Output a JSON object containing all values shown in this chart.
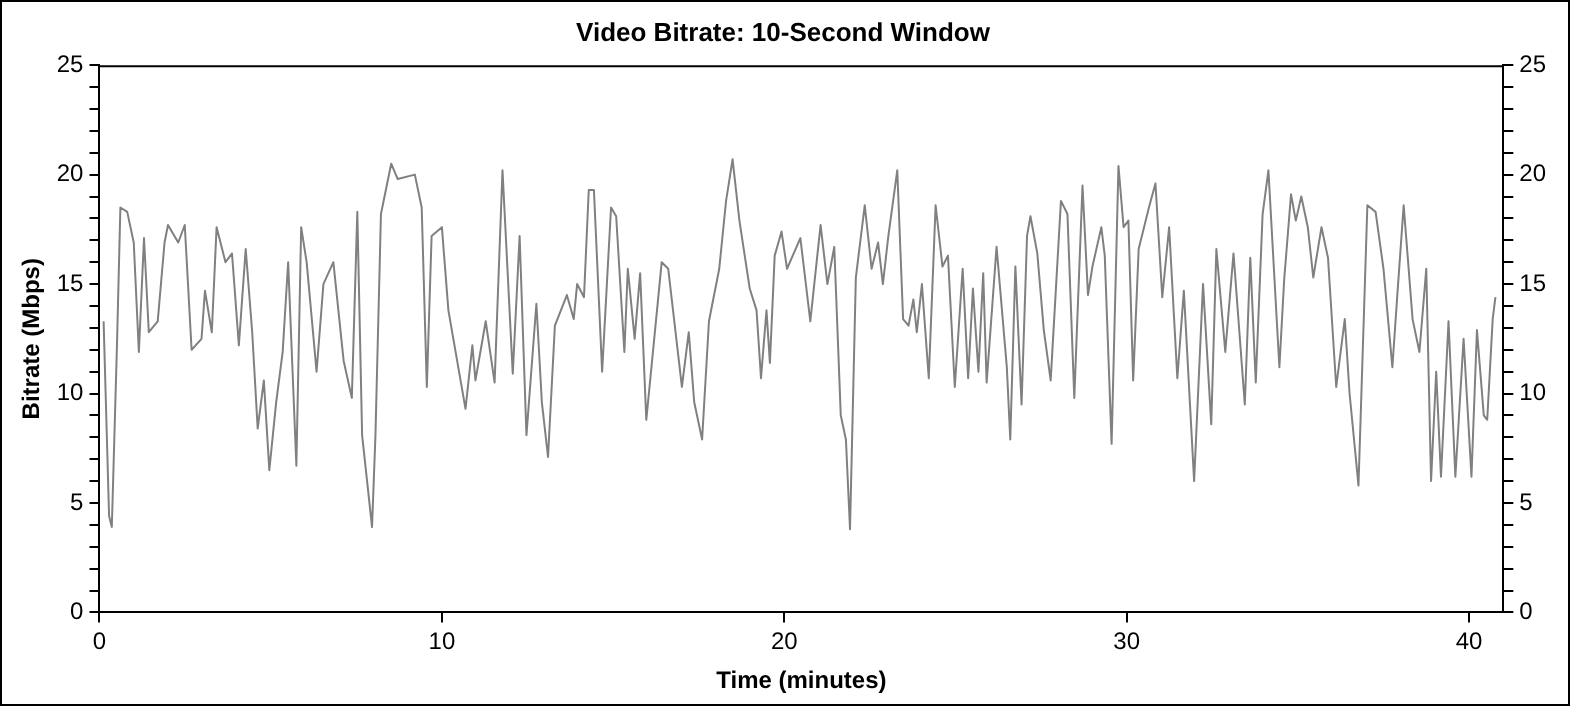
{
  "chart_data": {
    "type": "line",
    "title": "Video Bitrate: 10-Second Window",
    "xlabel": "Time (minutes)",
    "ylabel": "Bitrate (Mbps)",
    "series": [
      {
        "color": "#808080",
        "x": [
          0.12,
          0.28,
          0.36,
          0.51,
          0.61,
          0.81,
          1.0,
          1.15,
          1.3,
          1.44,
          1.7,
          1.9,
          2.0,
          2.3,
          2.49,
          2.69,
          2.98,
          3.08,
          3.28,
          3.42,
          3.68,
          3.87,
          4.07,
          4.27,
          4.46,
          4.62,
          4.8,
          4.96,
          5.16,
          5.35,
          5.51,
          5.75,
          5.89,
          6.05,
          6.34,
          6.54,
          6.83,
          7.13,
          7.37,
          7.53,
          7.67,
          7.96,
          8.06,
          8.22,
          8.52,
          8.71,
          9.21,
          9.41,
          9.56,
          9.7,
          10.0,
          10.19,
          10.69,
          10.89,
          10.98,
          11.28,
          11.54,
          11.77,
          12.07,
          12.27,
          12.47,
          12.76,
          12.92,
          13.1,
          13.3,
          13.65,
          13.85,
          13.95,
          14.15,
          14.29,
          14.44,
          14.68,
          14.94,
          15.09,
          15.33,
          15.43,
          15.63,
          15.79,
          15.97,
          16.42,
          16.61,
          17.01,
          17.21,
          17.37,
          17.6,
          17.8,
          18.1,
          18.3,
          18.49,
          18.69,
          18.99,
          19.19,
          19.32,
          19.48,
          19.58,
          19.72,
          19.92,
          20.08,
          20.47,
          20.76,
          21.06,
          21.26,
          21.46,
          21.65,
          21.8,
          21.92,
          22.09,
          22.35,
          22.55,
          22.74,
          22.88,
          23.04,
          23.3,
          23.47,
          23.63,
          23.77,
          23.87,
          24.02,
          24.22,
          24.42,
          24.62,
          24.78,
          24.98,
          25.21,
          25.37,
          25.51,
          25.67,
          25.81,
          25.91,
          26.2,
          26.5,
          26.6,
          26.75,
          26.93,
          27.09,
          27.19,
          27.39,
          27.58,
          27.78,
          28.08,
          28.27,
          28.47,
          28.71,
          28.87,
          29.0,
          29.26,
          29.36,
          29.56,
          29.76,
          29.91,
          30.05,
          30.19,
          30.35,
          30.65,
          30.84,
          31.04,
          31.24,
          31.48,
          31.67,
          31.97,
          32.23,
          32.47,
          32.62,
          32.88,
          33.12,
          33.45,
          33.61,
          33.77,
          33.97,
          34.14,
          34.46,
          34.6,
          34.8,
          34.94,
          35.1,
          35.29,
          35.45,
          35.69,
          35.88,
          36.12,
          36.37,
          36.51,
          36.77,
          37.03,
          37.27,
          37.5,
          37.76,
          37.9,
          38.09,
          38.35,
          38.55,
          38.75,
          38.89,
          39.04,
          39.18,
          39.4,
          39.6,
          39.84,
          40.07,
          40.23,
          40.43,
          40.53,
          40.69,
          40.77
        ],
        "values": [
          13.3,
          4.4,
          3.9,
          12.2,
          18.5,
          18.3,
          16.9,
          11.9,
          17.1,
          12.8,
          13.3,
          16.9,
          17.7,
          16.9,
          17.7,
          12.0,
          12.5,
          14.7,
          12.8,
          17.6,
          16.0,
          16.4,
          12.2,
          16.6,
          12.8,
          8.4,
          10.6,
          6.5,
          9.6,
          11.9,
          16.0,
          6.7,
          17.6,
          16.0,
          11.0,
          15.0,
          16.0,
          11.5,
          9.8,
          18.3,
          8.1,
          3.9,
          8.1,
          18.2,
          20.5,
          19.8,
          20.0,
          18.5,
          10.3,
          17.2,
          17.6,
          13.8,
          9.3,
          12.2,
          10.6,
          13.3,
          10.5,
          20.2,
          10.9,
          17.2,
          8.1,
          14.1,
          9.6,
          7.1,
          13.1,
          14.5,
          13.4,
          15.0,
          14.4,
          19.3,
          19.3,
          11.0,
          18.5,
          18.1,
          11.9,
          15.7,
          12.5,
          15.5,
          8.8,
          16.0,
          15.7,
          10.3,
          12.8,
          9.6,
          7.9,
          13.3,
          15.7,
          18.8,
          20.7,
          17.9,
          14.8,
          13.8,
          10.7,
          13.8,
          11.4,
          16.3,
          17.4,
          15.7,
          17.1,
          13.3,
          17.7,
          15.0,
          16.7,
          9.0,
          7.9,
          3.8,
          15.3,
          18.6,
          15.7,
          16.9,
          15.0,
          17.2,
          20.2,
          13.4,
          13.1,
          14.3,
          12.8,
          15.0,
          10.7,
          18.6,
          15.8,
          16.3,
          10.3,
          15.7,
          10.7,
          14.8,
          11.0,
          15.5,
          10.5,
          16.7,
          11.2,
          7.9,
          15.8,
          9.5,
          17.2,
          18.1,
          16.4,
          12.9,
          10.6,
          18.8,
          18.2,
          9.8,
          19.5,
          14.5,
          15.8,
          17.6,
          16.3,
          7.7,
          20.4,
          17.6,
          17.9,
          10.6,
          16.6,
          18.5,
          19.6,
          14.4,
          17.6,
          10.7,
          14.7,
          6.0,
          15.0,
          8.6,
          16.6,
          11.9,
          16.4,
          9.5,
          16.2,
          10.5,
          18.2,
          20.2,
          11.2,
          15.2,
          19.1,
          17.9,
          19.0,
          17.6,
          15.3,
          17.6,
          16.2,
          10.3,
          13.4,
          10.0,
          5.8,
          18.6,
          18.3,
          15.7,
          11.2,
          14.4,
          18.6,
          13.4,
          11.9,
          15.7,
          6.0,
          11.0,
          6.2,
          13.3,
          6.2,
          12.5,
          6.2,
          12.9,
          9.0,
          8.8,
          13.4,
          14.4
        ]
      }
    ],
    "xlim": [
      0,
      41
    ],
    "xticks": [
      0,
      10,
      20,
      30,
      40
    ],
    "ylim": [
      0,
      25
    ],
    "yticks": [
      0,
      {
        "value": 1,
        "label": null
      },
      {
        "value": 2,
        "label": null
      },
      {
        "value": 3,
        "label": null
      },
      {
        "value": 4,
        "label": null
      },
      5,
      {
        "value": 6,
        "label": null
      },
      {
        "value": 7,
        "label": null
      },
      {
        "value": 8,
        "label": null
      },
      {
        "value": 9,
        "label": null
      },
      10,
      {
        "value": 11,
        "label": null
      },
      {
        "value": 12,
        "label": null
      },
      {
        "value": 13,
        "label": null
      },
      {
        "value": 14,
        "label": null
      },
      15,
      {
        "value": 16,
        "label": null
      },
      {
        "value": 17,
        "label": null
      },
      {
        "value": 18,
        "label": null
      },
      {
        "value": 19,
        "label": null
      },
      20,
      {
        "value": 21,
        "label": null
      },
      {
        "value": 22,
        "label": null
      },
      {
        "value": 23,
        "label": null
      },
      {
        "value": 24,
        "label": null
      },
      25
    ],
    "y2lim": [
      0,
      25
    ],
    "y2ticks": [
      0,
      {
        "value": 1,
        "label": null
      },
      {
        "value": 2,
        "label": null
      },
      {
        "value": 3,
        "label": null
      },
      {
        "value": 4,
        "label": null
      },
      5,
      {
        "value": 6,
        "label": null
      },
      {
        "value": 7,
        "label": null
      },
      {
        "value": 8,
        "label": null
      },
      {
        "value": 9,
        "label": null
      },
      10,
      {
        "value": 11,
        "label": null
      },
      {
        "value": 12,
        "label": null
      },
      {
        "value": 13,
        "label": null
      },
      {
        "value": 14,
        "label": null
      },
      15,
      {
        "value": 16,
        "label": null
      },
      {
        "value": 17,
        "label": null
      },
      {
        "value": 18,
        "label": null
      },
      {
        "value": 19,
        "label": null
      },
      20,
      {
        "value": 21,
        "label": null
      },
      {
        "value": 22,
        "label": null
      },
      {
        "value": 23,
        "label": null
      },
      {
        "value": 24,
        "label": null
      },
      25
    ],
    "grid": false,
    "legend": false,
    "marker": "none",
    "line_style": "solid"
  }
}
